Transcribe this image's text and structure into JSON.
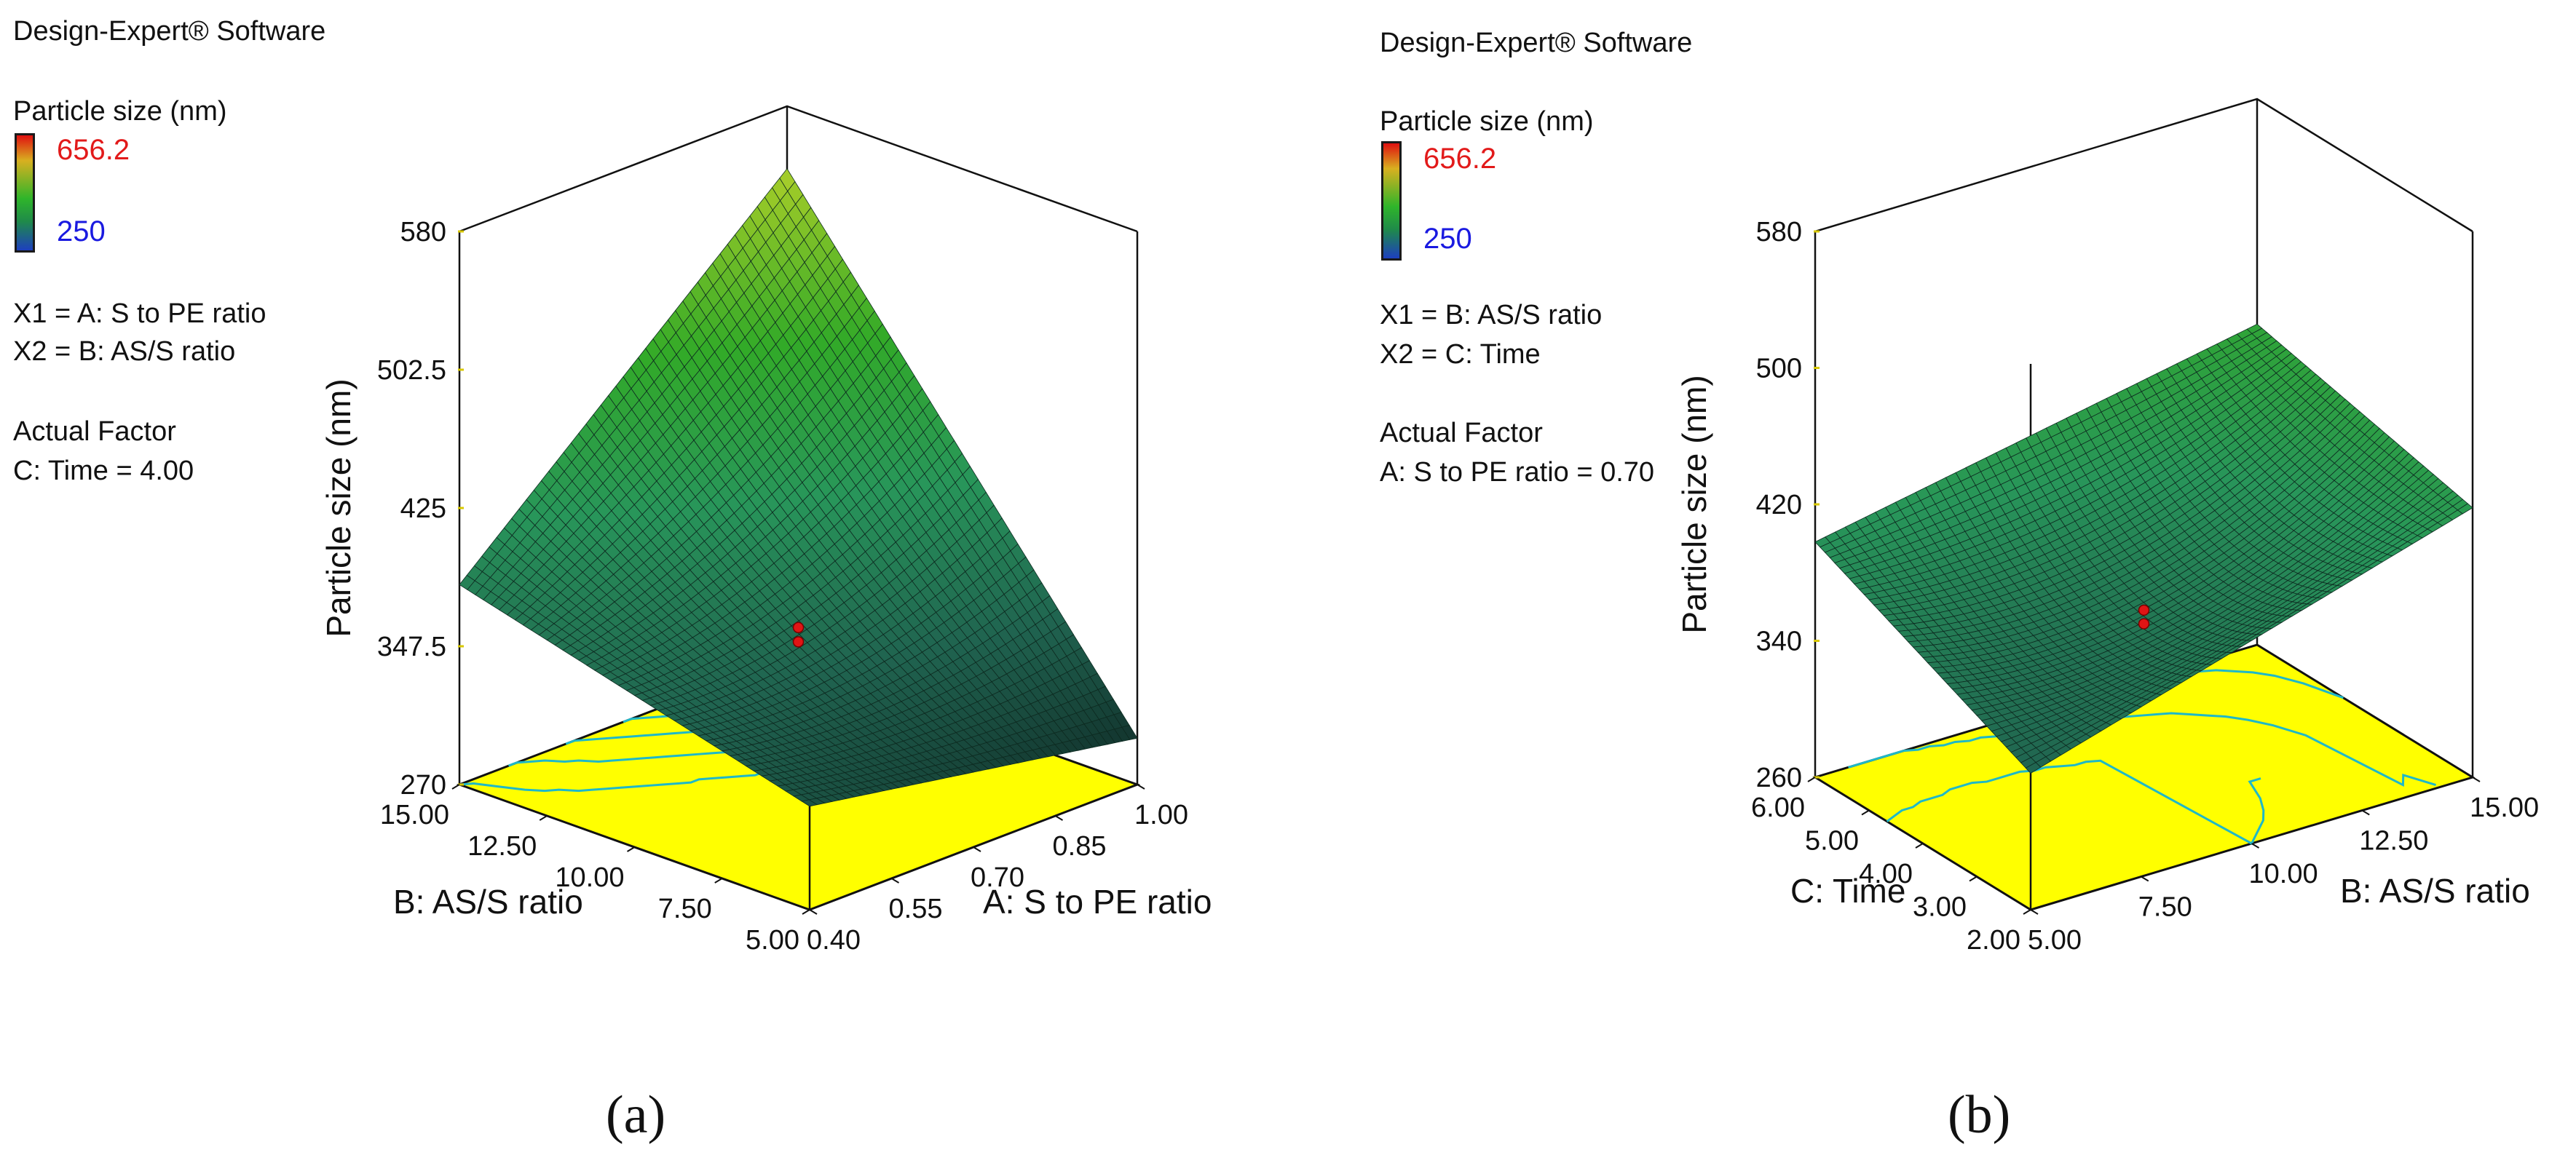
{
  "chart_data": [
    {
      "type": "surface",
      "panel_label": "(a)",
      "software": "Design-Expert® Software",
      "response": "Particle size (nm)",
      "color_scale": {
        "max": "656.2",
        "min": "250",
        "max_color": "#e21a1a",
        "min_color": "#1a1ae0"
      },
      "x1": "X1 = A: S to PE ratio",
      "x2": "X2 = B: AS/S ratio",
      "actual_factor_title": "Actual Factor",
      "actual_factor": "C: Time = 4.00",
      "zlabel": "Particle size (nm)",
      "zticks": [
        "580",
        "502.5",
        "425",
        "347.5",
        "270"
      ],
      "zlim": [
        270,
        580
      ],
      "xlabel": "A: S to PE ratio",
      "xticks": [
        "0.40",
        "0.55",
        "0.70",
        "0.85",
        "1.00"
      ],
      "xlim": [
        0.4,
        1.0
      ],
      "ylabel": "B: AS/S ratio",
      "yticks": [
        "5.00",
        "7.50",
        "10.00",
        "12.50",
        "15.00"
      ],
      "ylim": [
        5,
        15
      ],
      "surface_corners": {
        "x_min_y_min": 328,
        "x_max_y_min": 296,
        "x_min_y_max": 382,
        "x_max_y_max": 545
      },
      "design_points": [
        358,
        350
      ]
    },
    {
      "type": "surface",
      "panel_label": "(b)",
      "software": "Design-Expert® Software",
      "response": "Particle size (nm)",
      "color_scale": {
        "max": "656.2",
        "min": "250",
        "max_color": "#e21a1a",
        "min_color": "#1a1ae0"
      },
      "x1": "X1 = B: AS/S ratio",
      "x2": "X2 = C: Time",
      "actual_factor_title": "Actual Factor",
      "actual_factor": "A: S to PE ratio = 0.70",
      "zlabel": "Particle size (nm)",
      "zticks": [
        "580",
        "500",
        "420",
        "340",
        "260"
      ],
      "zlim": [
        260,
        580
      ],
      "xlabel": "B: AS/S ratio",
      "xticks": [
        "5.00",
        "7.50",
        "10.00",
        "12.50",
        "15.00"
      ],
      "xlim": [
        5,
        15
      ],
      "ylabel": "C: Time",
      "yticks": [
        "2.00",
        "3.00",
        "4.00",
        "5.00",
        "6.00"
      ],
      "ylim": [
        2,
        6
      ],
      "surface_corners": {
        "x_min_y_min": 340,
        "x_max_y_min": 418,
        "x_min_y_max": 398,
        "x_max_y_max": 448
      },
      "design_points": [
        358,
        350
      ]
    }
  ]
}
